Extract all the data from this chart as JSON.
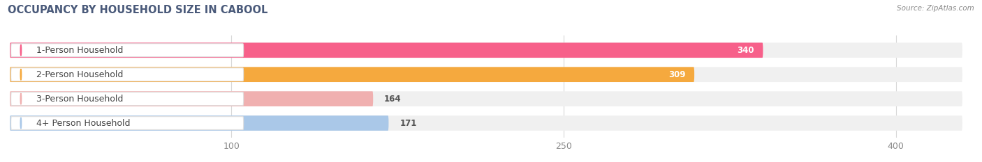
{
  "title": "OCCUPANCY BY HOUSEHOLD SIZE IN CABOOL",
  "source": "Source: ZipAtlas.com",
  "categories": [
    "1-Person Household",
    "2-Person Household",
    "3-Person Household",
    "4+ Person Household"
  ],
  "values": [
    340,
    309,
    164,
    171
  ],
  "bar_colors": [
    "#f7608a",
    "#f5a93e",
    "#f0b0b0",
    "#aac8e8"
  ],
  "bar_bg_colors": [
    "#f0f0f0",
    "#f0f0f0",
    "#f0f0f0",
    "#f0f0f0"
  ],
  "label_colors": [
    "white",
    "white",
    "#888888",
    "#888888"
  ],
  "data_max": 430,
  "xticks": [
    100,
    250,
    400
  ],
  "figsize": [
    14.06,
    2.33
  ],
  "dpi": 100,
  "title_color": "#4a5a7a",
  "source_color": "#888888",
  "bg_color": "#ffffff",
  "label_box_color": "#ffffff",
  "label_box_edge_color": "#e0e0e0"
}
